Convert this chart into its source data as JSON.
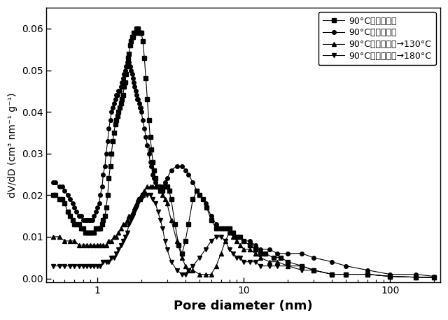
{
  "title": "",
  "xlabel": "Pore diameter (nm)",
  "ylabel": "dV/dD (cm³ nm⁻¹ g⁻¹)",
  "xlim": [
    0.45,
    220
  ],
  "ylim": [
    -0.001,
    0.065
  ],
  "yticks": [
    0.0,
    0.01,
    0.02,
    0.03,
    0.04,
    0.05,
    0.06
  ],
  "legend": [
    "90°C（開放系）",
    "90°C（閉鎖系）",
    "90°C（開放系）→130°C",
    "90°C（開放系）→180°C"
  ],
  "background_color": "#ffffff",
  "series1_x": [
    0.5,
    0.52,
    0.55,
    0.58,
    0.6,
    0.63,
    0.65,
    0.68,
    0.7,
    0.72,
    0.75,
    0.78,
    0.8,
    0.83,
    0.85,
    0.88,
    0.9,
    0.93,
    0.95,
    0.98,
    1.0,
    1.03,
    1.05,
    1.08,
    1.1,
    1.13,
    1.15,
    1.18,
    1.2,
    1.23,
    1.25,
    1.28,
    1.3,
    1.33,
    1.35,
    1.38,
    1.4,
    1.43,
    1.45,
    1.48,
    1.5,
    1.53,
    1.55,
    1.58,
    1.6,
    1.63,
    1.65,
    1.68,
    1.7,
    1.73,
    1.75,
    1.78,
    1.8,
    1.83,
    1.85,
    1.88,
    1.9,
    1.93,
    1.95,
    1.98,
    2.0,
    2.05,
    2.1,
    2.15,
    2.2,
    2.25,
    2.3,
    2.35,
    2.4,
    2.45,
    2.5,
    2.6,
    2.7,
    2.8,
    2.9,
    3.0,
    3.1,
    3.2,
    3.4,
    3.6,
    3.8,
    4.0,
    4.2,
    4.5,
    4.8,
    5.0,
    5.3,
    5.6,
    6.0,
    6.5,
    7.0,
    7.5,
    8.0,
    8.5,
    9.0,
    9.5,
    10.0,
    11.0,
    12.0,
    13.0,
    14.0,
    16.0,
    18.0,
    20.0,
    25.0,
    30.0,
    40.0,
    50.0,
    70.0,
    100.0,
    150.0,
    200.0
  ],
  "series1_y": [
    0.02,
    0.02,
    0.019,
    0.019,
    0.018,
    0.016,
    0.015,
    0.014,
    0.013,
    0.013,
    0.013,
    0.012,
    0.012,
    0.011,
    0.011,
    0.011,
    0.011,
    0.011,
    0.011,
    0.012,
    0.012,
    0.012,
    0.012,
    0.013,
    0.014,
    0.015,
    0.017,
    0.02,
    0.024,
    0.027,
    0.03,
    0.033,
    0.035,
    0.037,
    0.038,
    0.039,
    0.04,
    0.041,
    0.042,
    0.043,
    0.044,
    0.046,
    0.047,
    0.049,
    0.051,
    0.053,
    0.054,
    0.056,
    0.057,
    0.058,
    0.058,
    0.059,
    0.059,
    0.059,
    0.06,
    0.06,
    0.06,
    0.059,
    0.059,
    0.059,
    0.059,
    0.057,
    0.053,
    0.048,
    0.043,
    0.038,
    0.034,
    0.031,
    0.028,
    0.026,
    0.024,
    0.022,
    0.021,
    0.021,
    0.022,
    0.022,
    0.021,
    0.019,
    0.013,
    0.008,
    0.006,
    0.009,
    0.013,
    0.019,
    0.021,
    0.02,
    0.019,
    0.017,
    0.014,
    0.012,
    0.012,
    0.012,
    0.012,
    0.011,
    0.01,
    0.01,
    0.009,
    0.008,
    0.007,
    0.006,
    0.006,
    0.005,
    0.005,
    0.004,
    0.003,
    0.002,
    0.001,
    0.001,
    0.001,
    0.0005,
    0.0003,
    0.0002
  ],
  "series2_x": [
    0.5,
    0.52,
    0.55,
    0.58,
    0.6,
    0.63,
    0.65,
    0.68,
    0.7,
    0.72,
    0.75,
    0.78,
    0.8,
    0.83,
    0.85,
    0.88,
    0.9,
    0.93,
    0.95,
    0.98,
    1.0,
    1.03,
    1.05,
    1.08,
    1.1,
    1.13,
    1.15,
    1.18,
    1.2,
    1.23,
    1.25,
    1.28,
    1.3,
    1.33,
    1.35,
    1.38,
    1.4,
    1.43,
    1.45,
    1.48,
    1.5,
    1.53,
    1.55,
    1.58,
    1.6,
    1.63,
    1.65,
    1.68,
    1.7,
    1.73,
    1.75,
    1.78,
    1.8,
    1.83,
    1.85,
    1.88,
    1.9,
    1.93,
    1.95,
    1.98,
    2.0,
    2.05,
    2.1,
    2.15,
    2.2,
    2.25,
    2.3,
    2.35,
    2.4,
    2.45,
    2.5,
    2.6,
    2.7,
    2.8,
    2.9,
    3.0,
    3.2,
    3.5,
    3.8,
    4.0,
    4.2,
    4.5,
    5.0,
    5.5,
    6.0,
    6.5,
    7.0,
    7.5,
    8.0,
    8.5,
    9.0,
    9.5,
    10.0,
    11.0,
    12.0,
    13.0,
    15.0,
    17.0,
    20.0,
    25.0,
    30.0,
    40.0,
    50.0,
    70.0,
    100.0,
    150.0,
    200.0
  ],
  "series2_y": [
    0.023,
    0.023,
    0.022,
    0.022,
    0.021,
    0.02,
    0.019,
    0.018,
    0.017,
    0.016,
    0.015,
    0.015,
    0.014,
    0.014,
    0.014,
    0.014,
    0.014,
    0.014,
    0.015,
    0.016,
    0.017,
    0.018,
    0.02,
    0.022,
    0.025,
    0.027,
    0.03,
    0.033,
    0.036,
    0.038,
    0.04,
    0.041,
    0.042,
    0.043,
    0.044,
    0.044,
    0.045,
    0.045,
    0.046,
    0.047,
    0.048,
    0.049,
    0.05,
    0.051,
    0.052,
    0.052,
    0.052,
    0.051,
    0.05,
    0.049,
    0.048,
    0.047,
    0.046,
    0.045,
    0.044,
    0.043,
    0.043,
    0.042,
    0.041,
    0.041,
    0.04,
    0.038,
    0.036,
    0.034,
    0.032,
    0.03,
    0.028,
    0.027,
    0.025,
    0.024,
    0.023,
    0.022,
    0.022,
    0.022,
    0.023,
    0.024,
    0.026,
    0.027,
    0.027,
    0.026,
    0.025,
    0.023,
    0.02,
    0.018,
    0.015,
    0.013,
    0.012,
    0.012,
    0.011,
    0.011,
    0.01,
    0.01,
    0.009,
    0.009,
    0.008,
    0.007,
    0.007,
    0.006,
    0.006,
    0.006,
    0.005,
    0.004,
    0.003,
    0.002,
    0.001,
    0.001,
    0.0005
  ],
  "series3_x": [
    0.5,
    0.55,
    0.6,
    0.65,
    0.7,
    0.75,
    0.8,
    0.85,
    0.9,
    0.95,
    1.0,
    1.05,
    1.1,
    1.15,
    1.2,
    1.25,
    1.3,
    1.35,
    1.4,
    1.45,
    1.5,
    1.55,
    1.6,
    1.65,
    1.7,
    1.75,
    1.8,
    1.85,
    1.9,
    1.95,
    2.0,
    2.05,
    2.1,
    2.2,
    2.3,
    2.4,
    2.5,
    2.6,
    2.7,
    2.8,
    2.9,
    3.0,
    3.2,
    3.5,
    3.8,
    4.0,
    4.2,
    4.5,
    5.0,
    5.5,
    6.0,
    6.5,
    7.0,
    7.5,
    8.0,
    8.5,
    9.0,
    9.5,
    10.0,
    11.0,
    12.0,
    13.0,
    15.0,
    17.0,
    20.0,
    25.0,
    30.0,
    40.0,
    50.0,
    70.0,
    100.0,
    150.0,
    200.0
  ],
  "series3_y": [
    0.01,
    0.01,
    0.009,
    0.009,
    0.009,
    0.008,
    0.008,
    0.008,
    0.008,
    0.008,
    0.008,
    0.008,
    0.008,
    0.008,
    0.009,
    0.009,
    0.01,
    0.01,
    0.011,
    0.012,
    0.013,
    0.013,
    0.014,
    0.015,
    0.015,
    0.016,
    0.017,
    0.018,
    0.019,
    0.019,
    0.02,
    0.02,
    0.021,
    0.022,
    0.022,
    0.022,
    0.022,
    0.022,
    0.021,
    0.02,
    0.019,
    0.018,
    0.014,
    0.009,
    0.005,
    0.003,
    0.002,
    0.002,
    0.001,
    0.001,
    0.001,
    0.003,
    0.006,
    0.009,
    0.011,
    0.01,
    0.009,
    0.008,
    0.007,
    0.007,
    0.006,
    0.005,
    0.004,
    0.004,
    0.003,
    0.003,
    0.002,
    0.001,
    0.001,
    0.001,
    0.0005,
    0.0003,
    0.0002
  ],
  "series4_x": [
    0.5,
    0.55,
    0.6,
    0.65,
    0.7,
    0.75,
    0.8,
    0.85,
    0.9,
    0.95,
    1.0,
    1.05,
    1.1,
    1.15,
    1.2,
    1.25,
    1.3,
    1.35,
    1.4,
    1.45,
    1.5,
    1.55,
    1.6,
    1.65,
    1.7,
    1.75,
    1.8,
    1.85,
    1.9,
    1.95,
    2.0,
    2.05,
    2.1,
    2.2,
    2.3,
    2.4,
    2.5,
    2.6,
    2.7,
    2.8,
    2.9,
    3.0,
    3.2,
    3.5,
    3.8,
    4.0,
    4.2,
    4.5,
    5.0,
    5.5,
    6.0,
    6.5,
    7.0,
    7.5,
    8.0,
    8.5,
    9.0,
    9.5,
    10.0,
    11.0,
    12.0,
    13.0,
    15.0,
    17.0,
    20.0,
    25.0,
    30.0,
    40.0,
    50.0,
    70.0,
    100.0,
    150.0,
    200.0
  ],
  "series4_y": [
    0.003,
    0.003,
    0.003,
    0.003,
    0.003,
    0.003,
    0.003,
    0.003,
    0.003,
    0.003,
    0.003,
    0.003,
    0.004,
    0.004,
    0.004,
    0.005,
    0.005,
    0.006,
    0.007,
    0.008,
    0.009,
    0.01,
    0.011,
    0.013,
    0.014,
    0.015,
    0.016,
    0.017,
    0.018,
    0.019,
    0.019,
    0.02,
    0.02,
    0.02,
    0.02,
    0.019,
    0.018,
    0.016,
    0.014,
    0.012,
    0.009,
    0.007,
    0.004,
    0.002,
    0.001,
    0.001,
    0.002,
    0.003,
    0.005,
    0.007,
    0.009,
    0.01,
    0.01,
    0.009,
    0.007,
    0.006,
    0.005,
    0.005,
    0.004,
    0.004,
    0.004,
    0.003,
    0.003,
    0.003,
    0.003,
    0.002,
    0.002,
    0.001,
    0.001,
    0.001,
    0.0005,
    0.0003,
    0.0002
  ]
}
